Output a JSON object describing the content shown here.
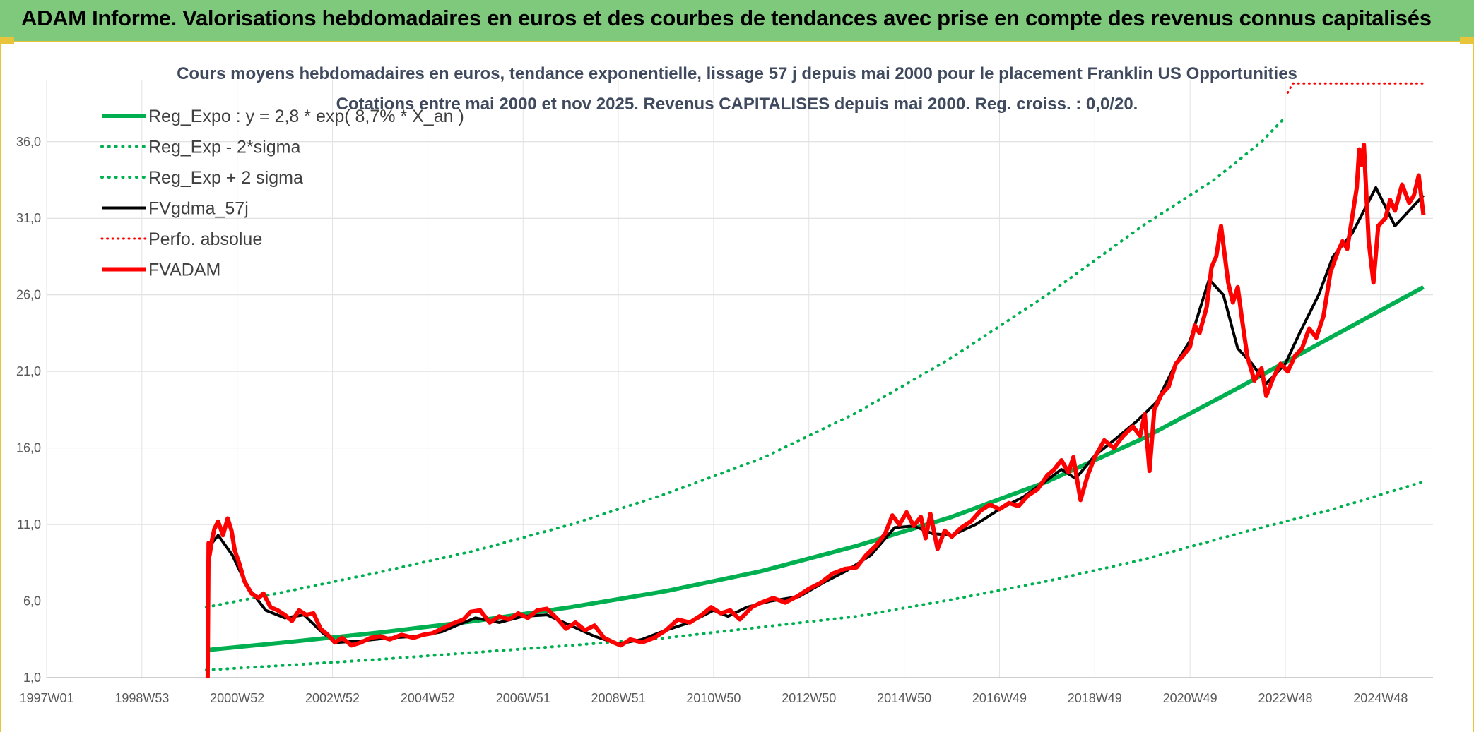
{
  "header": {
    "title": "ADAM Informe. Valorisations hebdomadaires en euros et des courbes de tendances avec prise en compte des revenus connus capitalisés"
  },
  "colors": {
    "banner": "#7fc97c",
    "accent": "#e8c43a",
    "green": "#00b050",
    "red": "#ff0000",
    "black": "#000000"
  },
  "chart_data": {
    "type": "line",
    "title": "Cours moyens hebdomadaires en euros, tendance exponentielle, lissage 57 j depuis mai 2000 pour le placement Franklin US Opportunities",
    "subtitle": "Cotations entre mai 2000 et nov 2025. Revenus CAPITALISES depuis mai 2000. Reg. croiss. : 0,0/20.",
    "ylim": [
      1.0,
      40.0
    ],
    "yticks": [
      "1,0",
      "6,0",
      "11,0",
      "16,0",
      "21,0",
      "26,0",
      "31,0",
      "36,0"
    ],
    "ytick_values": [
      1,
      6,
      11,
      16,
      21,
      26,
      31,
      36
    ],
    "xlim": [
      1997.0,
      2026.1
    ],
    "xticks": [
      "1997W01",
      "1998W53",
      "2000W52",
      "2002W52",
      "2004W52",
      "2006W51",
      "2008W51",
      "2010W50",
      "2012W50",
      "2014W50",
      "2016W49",
      "2018W49",
      "2020W49",
      "2022W48",
      "2024W48"
    ],
    "xtick_values": [
      1997.0,
      1999.0,
      2001.0,
      2003.0,
      2005.0,
      2007.0,
      2009.0,
      2011.0,
      2013.0,
      2015.0,
      2017.0,
      2019.0,
      2021.0,
      2023.0,
      2025.0
    ],
    "grid": true,
    "legend_position": "top-left",
    "legend": [
      {
        "label": "Reg_Expo : y = 2,8 * exp( 8,7% *  X_an )",
        "color": "#00b050",
        "style": "solid",
        "width": 6
      },
      {
        "label": "Reg_Exp - 2*sigma",
        "color": "#00b050",
        "style": "dotted",
        "width": 4
      },
      {
        "label": "Reg_Exp + 2 sigma",
        "color": "#00b050",
        "style": "dotted",
        "width": 4
      },
      {
        "label": "FVgdma_57j",
        "color": "#000000",
        "style": "solid",
        "width": 4
      },
      {
        "label": "Perfo. absolue",
        "color": "#ff0000",
        "style": "dotted",
        "width": 3
      },
      {
        "label": "FVADAM",
        "color": "#ff0000",
        "style": "solid",
        "width": 6
      }
    ],
    "series": [
      {
        "name": "Reg_Expo : y = 2,8 * exp( 8,7% *  X_an )",
        "x": [
          2000.35,
          2002.0,
          2004.0,
          2006.0,
          2008.0,
          2010.0,
          2012.0,
          2014.0,
          2016.0,
          2018.0,
          2020.0,
          2022.0,
          2024.0,
          2025.9
        ],
        "y": [
          2.8,
          3.3,
          3.95,
          4.7,
          5.6,
          6.65,
          7.95,
          9.6,
          11.5,
          13.8,
          16.6,
          19.9,
          23.3,
          26.5
        ]
      },
      {
        "name": "Reg_Exp - 2*sigma",
        "x": [
          2000.35,
          2002.0,
          2004.0,
          2006.0,
          2008.0,
          2010.0,
          2012.0,
          2014.0,
          2016.0,
          2018.0,
          2020.0,
          2022.0,
          2024.0,
          2025.9
        ],
        "y": [
          1.5,
          1.8,
          2.2,
          2.65,
          3.1,
          3.6,
          4.3,
          5.0,
          6.1,
          7.3,
          8.7,
          10.4,
          12.0,
          13.8
        ]
      },
      {
        "name": "Reg_Exp + 2 sigma",
        "x": [
          2000.35,
          2002.0,
          2004.0,
          2006.0,
          2008.0,
          2010.0,
          2012.0,
          2014.0,
          2016.0,
          2018.0,
          2020.0,
          2021.5,
          2022.5,
          2023.0
        ],
        "y": [
          5.6,
          6.6,
          7.9,
          9.3,
          11.0,
          13.0,
          15.3,
          18.3,
          21.9,
          26.0,
          30.5,
          33.5,
          36.0,
          37.6
        ]
      },
      {
        "name": "Perfo. absolue",
        "x": [
          2023.05,
          2023.15,
          2024.0,
          2025.0,
          2025.9
        ],
        "y": [
          39.2,
          39.8,
          39.8,
          39.8,
          39.8
        ]
      },
      {
        "name": "FVgdma_57j",
        "x": [
          2000.4,
          2000.6,
          2000.9,
          2001.2,
          2001.6,
          2002.0,
          2002.4,
          2002.8,
          2003.1,
          2003.6,
          2004.2,
          2004.8,
          2005.3,
          2005.6,
          2006.0,
          2006.5,
          2007.0,
          2007.5,
          2008.0,
          2008.5,
          2009.0,
          2009.5,
          2010.0,
          2010.5,
          2011.0,
          2011.3,
          2011.7,
          2012.2,
          2012.8,
          2013.3,
          2013.8,
          2014.3,
          2014.8,
          2015.2,
          2015.6,
          2016.0,
          2016.5,
          2017.0,
          2017.5,
          2018.0,
          2018.3,
          2018.6,
          2019.0,
          2019.4,
          2019.9,
          2020.3,
          2020.7,
          2021.0,
          2021.4,
          2021.7,
          2022.0,
          2022.3,
          2022.6,
          2023.0,
          2023.3,
          2023.7,
          2024.0,
          2024.4,
          2024.7,
          2024.9,
          2025.3,
          2025.9
        ],
        "y": [
          9.5,
          10.3,
          9.0,
          7.0,
          5.4,
          4.9,
          5.1,
          3.9,
          3.3,
          3.4,
          3.6,
          3.7,
          4.0,
          4.4,
          4.9,
          4.6,
          5.0,
          5.1,
          4.4,
          3.7,
          3.2,
          3.5,
          4.1,
          4.6,
          5.4,
          5.0,
          5.6,
          6.0,
          6.3,
          7.2,
          8.0,
          9.0,
          10.8,
          10.9,
          10.4,
          10.3,
          11.0,
          12.0,
          12.8,
          13.9,
          14.6,
          14.0,
          15.5,
          16.5,
          17.8,
          19.0,
          21.5,
          23.0,
          27.0,
          26.0,
          22.5,
          21.5,
          20.2,
          21.5,
          23.5,
          26.0,
          28.5,
          30.0,
          31.8,
          33.0,
          30.5,
          32.5
        ]
      },
      {
        "name": "FVADAM",
        "x": [
          2000.38,
          2000.4,
          2000.42,
          2000.47,
          2000.52,
          2000.6,
          2000.7,
          2000.8,
          2000.88,
          2000.95,
          2001.05,
          2001.15,
          2001.3,
          2001.45,
          2001.55,
          2001.7,
          2001.85,
          2002.0,
          2002.15,
          2002.3,
          2002.45,
          2002.6,
          2002.75,
          2002.9,
          2003.05,
          2003.2,
          2003.4,
          2003.6,
          2003.8,
          2004.0,
          2004.2,
          2004.45,
          2004.7,
          2004.9,
          2005.1,
          2005.3,
          2005.5,
          2005.75,
          2005.9,
          2006.1,
          2006.3,
          2006.5,
          2006.7,
          2006.9,
          2007.1,
          2007.3,
          2007.5,
          2007.7,
          2007.9,
          2008.1,
          2008.3,
          2008.5,
          2008.7,
          2008.9,
          2009.05,
          2009.25,
          2009.5,
          2009.75,
          2010.0,
          2010.25,
          2010.5,
          2010.75,
          2010.95,
          2011.15,
          2011.35,
          2011.55,
          2011.8,
          2012.0,
          2012.25,
          2012.5,
          2012.75,
          2013.0,
          2013.25,
          2013.5,
          2013.75,
          2014.0,
          2014.2,
          2014.4,
          2014.6,
          2014.75,
          2014.9,
          2015.05,
          2015.2,
          2015.35,
          2015.45,
          2015.55,
          2015.7,
          2015.85,
          2016.0,
          2016.2,
          2016.4,
          2016.6,
          2016.8,
          2017.0,
          2017.2,
          2017.4,
          2017.6,
          2017.8,
          2018.0,
          2018.15,
          2018.3,
          2018.45,
          2018.55,
          2018.7,
          2018.85,
          2019.0,
          2019.2,
          2019.4,
          2019.6,
          2019.8,
          2019.95,
          2020.05,
          2020.15,
          2020.25,
          2020.4,
          2020.55,
          2020.7,
          2020.85,
          2021.0,
          2021.1,
          2021.2,
          2021.35,
          2021.45,
          2021.55,
          2021.65,
          2021.8,
          2021.9,
          2022.0,
          2022.1,
          2022.2,
          2022.35,
          2022.5,
          2022.6,
          2022.75,
          2022.9,
          2023.05,
          2023.2,
          2023.35,
          2023.5,
          2023.65,
          2023.8,
          2023.95,
          2024.1,
          2024.2,
          2024.3,
          2024.4,
          2024.5,
          2024.55,
          2024.6,
          2024.65,
          2024.75,
          2024.85,
          2024.95,
          2025.1,
          2025.2,
          2025.3,
          2025.45,
          2025.6,
          2025.7,
          2025.8,
          2025.85,
          2025.9
        ],
        "y": [
          1.0,
          9.8,
          9.0,
          10.0,
          10.7,
          11.2,
          10.3,
          11.4,
          10.6,
          9.3,
          8.4,
          7.3,
          6.5,
          6.2,
          6.5,
          5.6,
          5.4,
          5.1,
          4.7,
          5.4,
          5.1,
          5.2,
          4.2,
          3.8,
          3.3,
          3.6,
          3.1,
          3.3,
          3.6,
          3.7,
          3.5,
          3.8,
          3.6,
          3.8,
          3.9,
          4.2,
          4.5,
          4.8,
          5.3,
          5.4,
          4.6,
          5.0,
          4.8,
          5.2,
          4.9,
          5.4,
          5.5,
          4.9,
          4.2,
          4.6,
          4.1,
          4.4,
          3.6,
          3.3,
          3.1,
          3.5,
          3.3,
          3.6,
          4.1,
          4.8,
          4.6,
          5.1,
          5.6,
          5.2,
          5.4,
          4.8,
          5.6,
          5.9,
          6.2,
          5.9,
          6.3,
          6.8,
          7.2,
          7.8,
          8.1,
          8.2,
          9.0,
          9.6,
          10.4,
          11.6,
          11.0,
          11.8,
          10.9,
          11.5,
          10.1,
          11.7,
          9.4,
          10.6,
          10.2,
          10.8,
          11.2,
          11.9,
          12.3,
          12.0,
          12.4,
          12.2,
          12.9,
          13.3,
          14.2,
          14.6,
          15.2,
          14.4,
          15.4,
          12.6,
          14.2,
          15.4,
          16.5,
          16.0,
          16.8,
          17.4,
          16.8,
          18.2,
          14.5,
          18.5,
          19.5,
          20.0,
          21.5,
          22.0,
          22.6,
          24.0,
          23.5,
          25.2,
          27.8,
          28.5,
          30.5,
          26.8,
          25.5,
          26.5,
          24.2,
          22.0,
          20.4,
          21.2,
          19.4,
          20.6,
          21.5,
          21.0,
          22.0,
          22.5,
          23.8,
          23.2,
          24.6,
          27.5,
          28.8,
          29.5,
          29.0,
          31.0,
          33.0,
          35.5,
          34.5,
          35.8,
          29.5,
          26.8,
          30.5,
          31.0,
          32.2,
          31.5,
          33.2,
          32.0,
          32.5,
          33.8,
          32.5,
          31.2
        ]
      }
    ]
  }
}
